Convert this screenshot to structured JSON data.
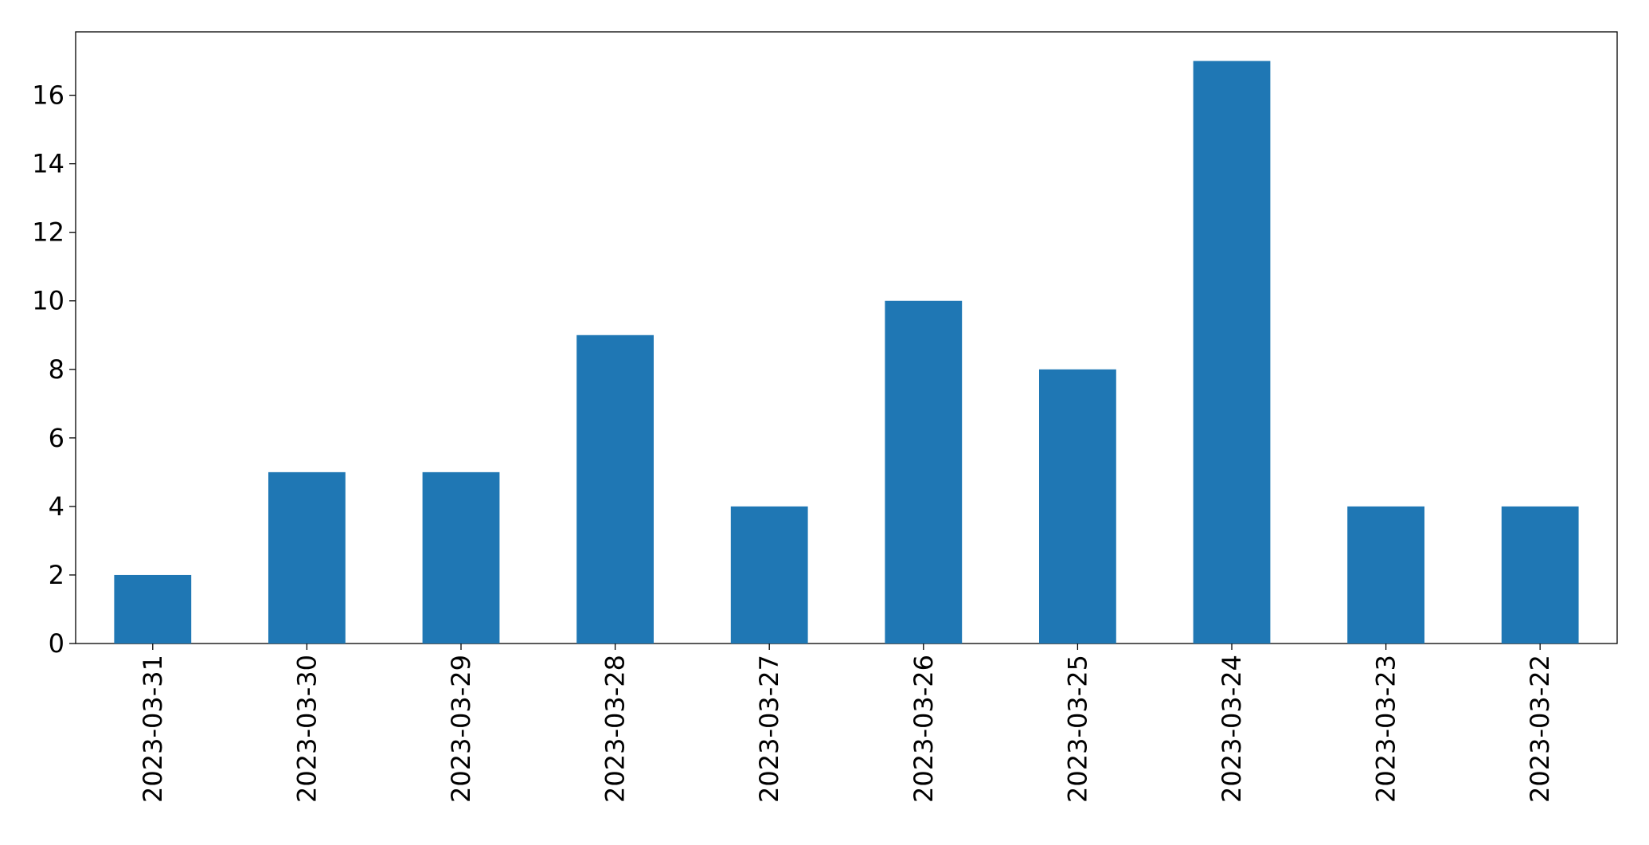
{
  "chart_data": {
    "type": "bar",
    "categories": [
      "2023-03-31",
      "2023-03-30",
      "2023-03-29",
      "2023-03-28",
      "2023-03-27",
      "2023-03-26",
      "2023-03-25",
      "2023-03-24",
      "2023-03-23",
      "2023-03-22"
    ],
    "values": [
      2,
      5,
      5,
      9,
      4,
      10,
      8,
      17,
      4,
      4
    ],
    "color": "#1f77b4",
    "ylim": [
      0,
      17.85
    ],
    "yticks": [
      0,
      2,
      4,
      6,
      8,
      10,
      12,
      14,
      16
    ],
    "grid": false
  }
}
